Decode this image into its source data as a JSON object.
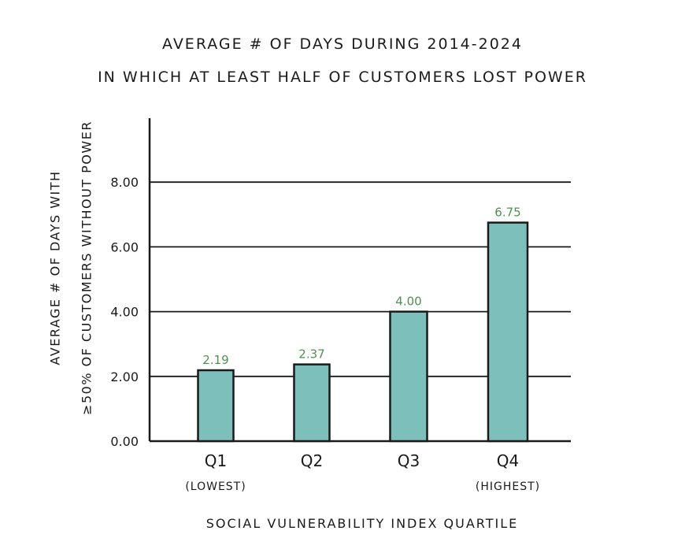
{
  "chart_data": {
    "type": "bar",
    "title_line1": "AVERAGE # OF DAYS DURING 2014-2024",
    "title_line2": "IN WHICH AT LEAST HALF OF CUSTOMERS LOST POWER",
    "ylabel_line1": "AVERAGE # OF DAYS WITH",
    "ylabel_line2": "≥50% OF CUSTOMERS WITHOUT POWER",
    "xlabel": "SOCIAL VULNERABILITY INDEX QUARTILE",
    "categories": [
      "Q1",
      "Q2",
      "Q3",
      "Q4"
    ],
    "category_sublabels": [
      "(LOWEST)",
      "",
      "",
      "(HIGHEST)"
    ],
    "values": [
      2.19,
      2.37,
      4.0,
      6.75
    ],
    "value_labels": [
      "2.19",
      "2.37",
      "4.00",
      "6.75"
    ],
    "yticks": [
      0,
      2,
      4,
      6,
      8
    ],
    "ytick_labels": [
      "0.00",
      "2.00",
      "4.00",
      "6.00",
      "8.00"
    ],
    "ylim": [
      0,
      10
    ],
    "grid": true,
    "colors": {
      "bar": "#7dbfba",
      "value_label": "#4f8f4f",
      "ink": "#1a1a1a"
    }
  }
}
